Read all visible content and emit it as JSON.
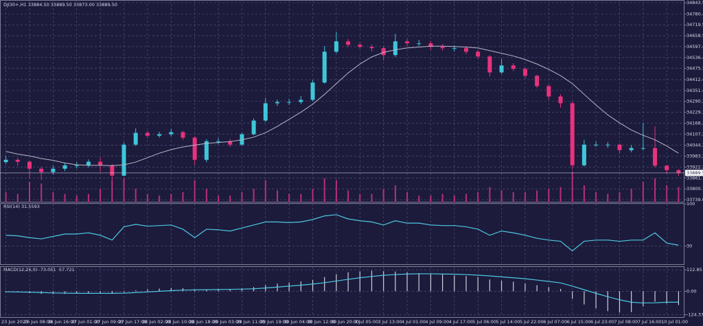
{
  "chart_data": [
    {
      "type": "candlestick",
      "title": "DJI30+,H1  33884.50 33889.50 33873.00 33889.50",
      "categories": [
        "23 Jun 2023",
        null,
        "26 Jun 08:00",
        null,
        "26 Jun 16:00",
        null,
        "27 Jun 01:00",
        null,
        "27 Jun 09:00",
        null,
        "27 Jun 17:00",
        null,
        "28 Jun 02:00",
        null,
        "28 Jun 10:00",
        null,
        "28 Jun 18:00",
        null,
        "29 Jun 03:00",
        null,
        "29 Jun 11:00",
        null,
        "29 Jun 19:00",
        null,
        "30 Jun 04:00",
        null,
        "30 Jun 12:00",
        null,
        "30 Jun 20:00",
        null,
        "3 Jul 05:00",
        null,
        "3 Jul 13:00",
        null,
        "4 Jul 01:00",
        null,
        "4 Jul 09:00",
        null,
        "4 Jul 17:00",
        null,
        "5 Jul 06:00",
        null,
        "5 Jul 14:00",
        null,
        "5 Jul 22:00",
        null,
        "6 Jul 07:00",
        null,
        "6 Jul 15:00",
        null,
        "6 Jul 23:00",
        null,
        "7 Jul 08:00",
        null,
        "7 Jul 16:00",
        null,
        "10 Jul 01:00",
        null
      ],
      "open": [
        33950,
        33963,
        33952,
        33913,
        33894,
        33913,
        33932,
        33932,
        33952,
        33932,
        33874,
        34048,
        34114,
        34098,
        34106,
        34118,
        34087,
        33963,
        34067,
        34067,
        34048,
        34106,
        34183,
        34280,
        34287,
        34287,
        34299,
        34396,
        34569,
        34627,
        34608,
        34596,
        34589,
        34550,
        34627,
        34616,
        34616,
        34596,
        34589,
        34589,
        34569,
        34542,
        34453,
        34492,
        34473,
        34434,
        34376,
        34318,
        34280,
        33932,
        34048,
        34048,
        34048,
        34017,
        34029,
        34029,
        33930,
        33905
      ],
      "high": [
        33985,
        33975,
        33960,
        33925,
        33930,
        33945,
        33950,
        33965,
        33975,
        33940,
        34060,
        34140,
        34125,
        34120,
        34135,
        34125,
        34095,
        34078,
        34085,
        34080,
        34115,
        34195,
        34310,
        34300,
        34305,
        34320,
        34410,
        34600,
        34680,
        34640,
        34620,
        34610,
        34600,
        34670,
        34640,
        34635,
        34630,
        34612,
        34605,
        34600,
        34580,
        34550,
        34530,
        34505,
        34480,
        34440,
        34385,
        34330,
        34290,
        34075,
        34065,
        34062,
        34055,
        34045,
        34170,
        34150,
        33935,
        33910
      ],
      "low": [
        33940,
        33930,
        33855,
        33850,
        33880,
        33900,
        33915,
        33920,
        33895,
        33850,
        33870,
        34040,
        34085,
        34088,
        34095,
        34075,
        33935,
        33950,
        34050,
        34035,
        34040,
        34100,
        34175,
        34265,
        34270,
        34275,
        34290,
        34390,
        34560,
        34595,
        34585,
        34570,
        34520,
        34540,
        34600,
        34600,
        34580,
        34575,
        34570,
        34555,
        34530,
        34430,
        34445,
        34460,
        34420,
        34365,
        34300,
        34255,
        33910,
        33925,
        34035,
        34030,
        34000,
        34005,
        34015,
        33920,
        33885,
        33873
      ],
      "close": [
        33963,
        33952,
        33913,
        33894,
        33913,
        33932,
        33932,
        33952,
        33932,
        33874,
        34048,
        34114,
        34098,
        34106,
        34118,
        34087,
        33963,
        34067,
        34067,
        34048,
        34106,
        34183,
        34280,
        34287,
        34287,
        34299,
        34396,
        34569,
        34627,
        34608,
        34596,
        34589,
        34550,
        34627,
        34616,
        34616,
        34596,
        34589,
        34589,
        34569,
        34542,
        34453,
        34492,
        34473,
        34434,
        34376,
        34318,
        34280,
        33932,
        34048,
        34048,
        34048,
        34017,
        34029,
        34029,
        33930,
        33905,
        33889.5
      ],
      "ma": [
        34010,
        33995,
        33985,
        33970,
        33960,
        33945,
        33935,
        33932,
        33932,
        33930,
        33935,
        33950,
        33975,
        34000,
        34020,
        34035,
        34045,
        34055,
        34060,
        34065,
        34075,
        34090,
        34115,
        34150,
        34190,
        34230,
        34275,
        34330,
        34390,
        34450,
        34500,
        34540,
        34565,
        34580,
        34590,
        34595,
        34600,
        34600,
        34598,
        34595,
        34590,
        34575,
        34560,
        34545,
        34525,
        34500,
        34470,
        34435,
        34390,
        34330,
        34270,
        34215,
        34170,
        34130,
        34100,
        34075,
        34040,
        34000
      ],
      "volume": [
        300,
        250,
        600,
        550,
        300,
        250,
        200,
        250,
        400,
        650,
        700,
        400,
        250,
        200,
        250,
        300,
        650,
        400,
        200,
        200,
        300,
        400,
        650,
        350,
        250,
        250,
        400,
        700,
        650,
        350,
        250,
        250,
        400,
        500,
        300,
        200,
        200,
        250,
        200,
        250,
        300,
        450,
        350,
        300,
        300,
        350,
        400,
        450,
        900,
        500,
        300,
        250,
        300,
        400,
        600,
        700,
        500,
        450
      ],
      "up_color": "#3ec6d9",
      "down_color": "#e8327c",
      "ma_color": "#b8b8c8",
      "volume_color": "#b8307a",
      "last_price": {
        "value": 33889.5,
        "label": "33889.50"
      },
      "ylim": [
        33723.7,
        34858.9
      ],
      "yticks": [
        {
          "value": 34843.5,
          "label": "34843.50"
        },
        34780.45,
        34719.55,
        {
          "value": 34658.5,
          "label": "34658.50"
        },
        34597.45,
        {
          "value": 34536.4,
          "label": "34536.40"
        },
        34475.35,
        34412.45,
        {
          "value": 34351.4,
          "label": "34351.40"
        },
        34290.35,
        {
          "value": 34229.3,
          "label": "34229.30"
        },
        34168.25,
        {
          "value": 34107.2,
          "label": "34107.20"
        },
        {
          "value": 34044.3,
          "label": "34044.30"
        },
        33983.25,
        {
          "value": 33922.2,
          "label": "33922.20"
        },
        33861.15,
        {
          "value": 33800.1,
          "label": "33800.10"
        },
        33739.05
      ],
      "grid": true
    },
    {
      "type": "line",
      "title": "RSI(14) 31.5593",
      "color": "#4fc8e0",
      "values": [
        48,
        47,
        44,
        42,
        46,
        50,
        50,
        52,
        48,
        40,
        62,
        66,
        63,
        64,
        65,
        58,
        44,
        58,
        57,
        55,
        60,
        65,
        70,
        70,
        69,
        70,
        74,
        80,
        82,
        75,
        72,
        70,
        65,
        72,
        68,
        68,
        65,
        64,
        64,
        62,
        58,
        48,
        55,
        52,
        48,
        43,
        40,
        38,
        22,
        38,
        40,
        40,
        38,
        40,
        40,
        52,
        35,
        31.5593
      ],
      "ylim": [
        0,
        100
      ],
      "yticks": [
        100,
        30
      ],
      "grid": true
    },
    {
      "type": "macd",
      "title": "MACD(12,26,9) -73.051 -57.721",
      "color": "#d0d0dc",
      "signal_color": "#4fc8e0",
      "values": [
        -5,
        -6,
        -10,
        -14,
        -15,
        -14,
        -12,
        -10,
        -10,
        -14,
        -5,
        5,
        10,
        14,
        17,
        16,
        8,
        10,
        12,
        12,
        15,
        22,
        32,
        40,
        46,
        52,
        60,
        75,
        90,
        100,
        105,
        108,
        106,
        104,
        100,
        96,
        92,
        88,
        84,
        80,
        74,
        62,
        56,
        50,
        42,
        32,
        22,
        12,
        -40,
        -70,
        -90,
        -105,
        -112,
        -110,
        -80,
        -55,
        -65,
        -73.051
      ],
      "signal": [
        -3,
        -4,
        -5,
        -7,
        -9,
        -10,
        -11,
        -11,
        -11,
        -11,
        -10,
        -7,
        -4,
        0,
        3,
        6,
        7,
        8,
        9,
        10,
        11,
        13,
        17,
        22,
        27,
        32,
        38,
        45,
        54,
        63,
        71,
        78,
        84,
        88,
        91,
        92,
        92,
        91,
        90,
        88,
        85,
        81,
        76,
        71,
        66,
        59,
        52,
        44,
        27,
        8,
        -11,
        -29,
        -45,
        -58,
        -62,
        -61,
        -58,
        -57.721
      ],
      "ylim": [
        -140,
        128
      ],
      "yticks": [
        112.85,
        {
          "value": 0,
          "label": "0.00"
        },
        -124.373
      ],
      "grid": true
    }
  ]
}
